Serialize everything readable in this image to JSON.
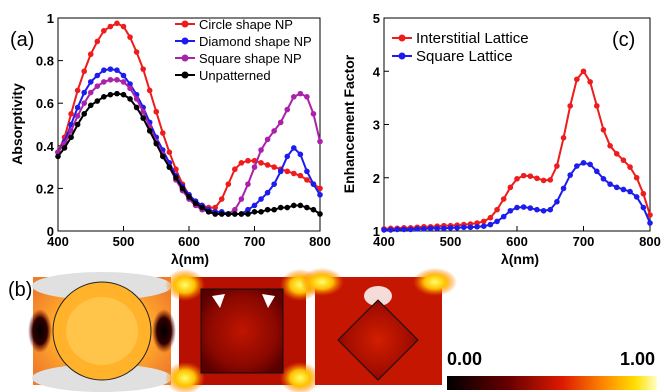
{
  "panels": {
    "a": "(a)",
    "b": "(b)",
    "c": "(c)"
  },
  "colorbar": {
    "min_label": "0.00",
    "max_label": "1.00"
  },
  "chart_data": [
    {
      "id": "a",
      "type": "line",
      "xlabel": "λ(nm)",
      "ylabel": "Absorptivity",
      "xlim": [
        400,
        800
      ],
      "ylim": [
        0,
        1
      ],
      "xticks": [
        "400",
        "500",
        "600",
        "700",
        "800"
      ],
      "yticks": [
        "0",
        "0.2",
        "0.4",
        "0.6",
        "0.8",
        "1"
      ],
      "legend_position": "top-right",
      "x": [
        400,
        410,
        420,
        430,
        440,
        450,
        460,
        470,
        480,
        490,
        500,
        510,
        520,
        530,
        540,
        550,
        560,
        570,
        580,
        590,
        600,
        610,
        620,
        630,
        640,
        650,
        660,
        670,
        680,
        690,
        700,
        710,
        720,
        730,
        740,
        750,
        760,
        770,
        780,
        790,
        800
      ],
      "series": [
        {
          "name": "Circle shape NP",
          "color": "#ee1c1c",
          "values": [
            0.37,
            0.44,
            0.55,
            0.66,
            0.75,
            0.83,
            0.89,
            0.94,
            0.96,
            0.975,
            0.96,
            0.91,
            0.84,
            0.76,
            0.66,
            0.56,
            0.46,
            0.37,
            0.29,
            0.22,
            0.17,
            0.14,
            0.12,
            0.11,
            0.11,
            0.15,
            0.22,
            0.29,
            0.32,
            0.33,
            0.33,
            0.32,
            0.31,
            0.3,
            0.29,
            0.28,
            0.27,
            0.26,
            0.24,
            0.22,
            0.2
          ]
        },
        {
          "name": "Diamond shape NP",
          "color": "#1c1cee",
          "values": [
            0.37,
            0.42,
            0.5,
            0.58,
            0.65,
            0.7,
            0.73,
            0.755,
            0.76,
            0.755,
            0.73,
            0.69,
            0.64,
            0.58,
            0.51,
            0.44,
            0.38,
            0.32,
            0.26,
            0.21,
            0.17,
            0.14,
            0.12,
            0.1,
            0.09,
            0.09,
            0.08,
            0.08,
            0.08,
            0.1,
            0.12,
            0.15,
            0.18,
            0.22,
            0.28,
            0.35,
            0.39,
            0.36,
            0.28,
            0.22,
            0.17
          ]
        },
        {
          "name": "Square shape NP",
          "color": "#aa22aa",
          "values": [
            0.37,
            0.41,
            0.47,
            0.54,
            0.6,
            0.65,
            0.68,
            0.7,
            0.71,
            0.71,
            0.7,
            0.67,
            0.62,
            0.56,
            0.49,
            0.42,
            0.36,
            0.3,
            0.24,
            0.19,
            0.15,
            0.12,
            0.1,
            0.09,
            0.08,
            0.08,
            0.08,
            0.1,
            0.15,
            0.22,
            0.3,
            0.38,
            0.43,
            0.47,
            0.51,
            0.57,
            0.63,
            0.645,
            0.63,
            0.55,
            0.42
          ]
        },
        {
          "name": "Unpatterned",
          "color": "#000000",
          "values": [
            0.35,
            0.39,
            0.44,
            0.5,
            0.55,
            0.59,
            0.61,
            0.63,
            0.64,
            0.645,
            0.64,
            0.62,
            0.58,
            0.53,
            0.47,
            0.41,
            0.35,
            0.3,
            0.25,
            0.2,
            0.16,
            0.13,
            0.11,
            0.09,
            0.08,
            0.08,
            0.08,
            0.08,
            0.08,
            0.08,
            0.09,
            0.09,
            0.1,
            0.1,
            0.11,
            0.11,
            0.12,
            0.12,
            0.11,
            0.1,
            0.08
          ]
        }
      ]
    },
    {
      "id": "c",
      "type": "line",
      "xlabel": "λ(nm)",
      "ylabel": "Enhancement Factor",
      "xlim": [
        400,
        800
      ],
      "ylim": [
        1,
        5
      ],
      "xticks": [
        "400",
        "500",
        "600",
        "700",
        "800"
      ],
      "yticks": [
        "1",
        "2",
        "3",
        "4",
        "5"
      ],
      "legend_position": "top-left",
      "x": [
        400,
        410,
        420,
        430,
        440,
        450,
        460,
        470,
        480,
        490,
        500,
        510,
        520,
        530,
        540,
        550,
        560,
        570,
        580,
        590,
        600,
        610,
        620,
        630,
        640,
        650,
        660,
        670,
        680,
        690,
        700,
        710,
        720,
        730,
        740,
        750,
        760,
        770,
        780,
        790,
        800
      ],
      "series": [
        {
          "name": "Interstitial Lattice",
          "color": "#ee1c1c",
          "values": [
            1.04,
            1.05,
            1.05,
            1.06,
            1.06,
            1.07,
            1.08,
            1.08,
            1.09,
            1.1,
            1.1,
            1.11,
            1.12,
            1.13,
            1.15,
            1.18,
            1.25,
            1.4,
            1.6,
            1.82,
            1.98,
            2.04,
            2.03,
            1.99,
            1.95,
            1.96,
            2.22,
            2.75,
            3.35,
            3.85,
            4.0,
            3.8,
            3.35,
            2.9,
            2.6,
            2.45,
            2.33,
            2.2,
            2.0,
            1.7,
            1.3
          ]
        },
        {
          "name": "Square Lattice",
          "color": "#1c1cee",
          "values": [
            1.02,
            1.02,
            1.03,
            1.03,
            1.03,
            1.04,
            1.04,
            1.05,
            1.05,
            1.05,
            1.06,
            1.06,
            1.07,
            1.07,
            1.08,
            1.09,
            1.12,
            1.18,
            1.27,
            1.38,
            1.44,
            1.45,
            1.43,
            1.4,
            1.38,
            1.4,
            1.55,
            1.8,
            2.05,
            2.22,
            2.28,
            2.25,
            2.12,
            1.98,
            1.88,
            1.82,
            1.78,
            1.74,
            1.64,
            1.44,
            1.15
          ]
        }
      ]
    }
  ]
}
